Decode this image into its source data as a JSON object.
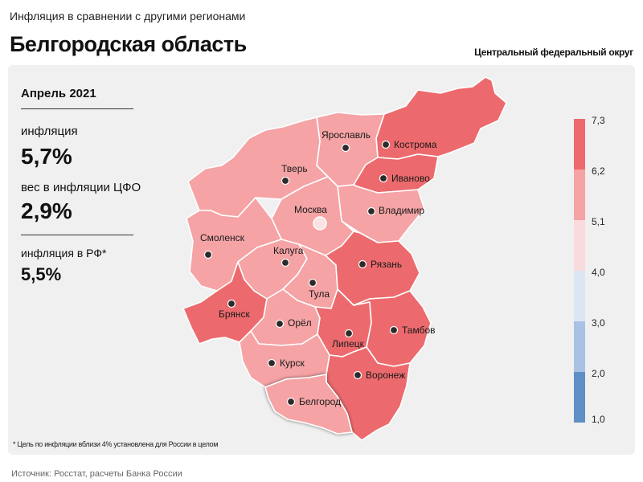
{
  "header": {
    "subtitle": "Инфляция в сравнении с другими регионами",
    "title": "Белгородская область",
    "district": "Центральный федеральный округ"
  },
  "stats": {
    "period": "Апрель 2021",
    "inflation_label": "инфляция",
    "inflation_value": "5,7%",
    "weight_label": "вес в инфляции ЦФО",
    "weight_value": "2,9%",
    "rf_label": "инфляция в РФ*",
    "rf_value": "5,5%"
  },
  "map": {
    "regions": [
      {
        "name": "Ярославль",
        "class": "5.1–6.2"
      },
      {
        "name": "Кострома",
        "class": "6.2–7.3"
      },
      {
        "name": "Тверь",
        "class": "5.1–6.2"
      },
      {
        "name": "Иваново",
        "class": "6.2–7.3"
      },
      {
        "name": "Москва",
        "class": "5.1–6.2"
      },
      {
        "name": "Владимир",
        "class": "5.1–6.2"
      },
      {
        "name": "Смоленск",
        "class": "5.1–6.2"
      },
      {
        "name": "Калуга",
        "class": "5.1–6.2"
      },
      {
        "name": "Рязань",
        "class": "6.2–7.3"
      },
      {
        "name": "Тула",
        "class": "5.1–6.2"
      },
      {
        "name": "Брянск",
        "class": "6.2–7.3"
      },
      {
        "name": "Орёл",
        "class": "5.1–6.2"
      },
      {
        "name": "Тамбов",
        "class": "6.2–7.3"
      },
      {
        "name": "Липецк",
        "class": "6.2–7.3"
      },
      {
        "name": "Курск",
        "class": "5.1–6.2"
      },
      {
        "name": "Воронеж",
        "class": "6.2–7.3"
      },
      {
        "name": "Белгород",
        "class": "5.1–6.2",
        "highlighted": true
      }
    ]
  },
  "legend": {
    "ticks": [
      "7,3",
      "6,2",
      "5,1",
      "4,0",
      "3,0",
      "2,0",
      "1,0"
    ],
    "colors": [
      "#ec6a6d",
      "#f5a3a5",
      "#f9dadd",
      "#dce6f3",
      "#a9c1e2",
      "#5e8fc6"
    ]
  },
  "footnote": "* Цель по инфляции вблизи 4% установлена для России в целом",
  "source": "Источник: Росстат, расчеты Банка России"
}
